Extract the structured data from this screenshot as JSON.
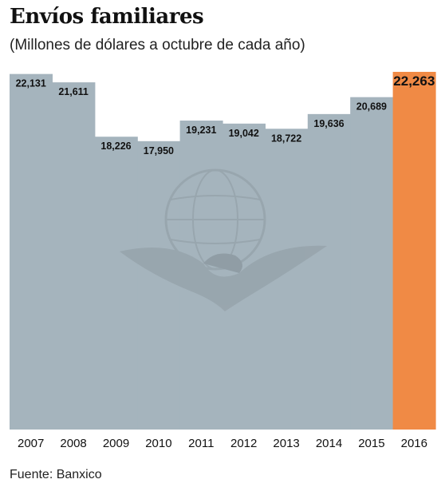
{
  "header": {
    "title": "Envíos familiares",
    "subtitle": "(Millones de dólares a octubre de cada año)"
  },
  "footer": {
    "source": "Fuente: Banxico"
  },
  "colors": {
    "bar": "#a5b4bd",
    "highlight": "#f08a45",
    "label_text": "#111111",
    "axis_text": "#111111",
    "emblem": "#8f9ba3"
  },
  "chart_data": {
    "type": "bar",
    "title": "Envíos familiares",
    "subtitle": "(Millones de dólares a octubre de cada año)",
    "xlabel": "",
    "ylabel": "",
    "categories": [
      "2007",
      "2008",
      "2009",
      "2010",
      "2011",
      "2012",
      "2013",
      "2014",
      "2015",
      "2016"
    ],
    "values": [
      22131,
      21611,
      18226,
      17950,
      19231,
      19042,
      18722,
      19636,
      20689,
      22263
    ],
    "value_labels": [
      "22,131",
      "21,611",
      "18,226",
      "17,950",
      "19,231",
      "19,042",
      "18,722",
      "19,636",
      "20,689",
      "22,263"
    ],
    "highlight_category": "2016",
    "ylim": [
      0,
      22263
    ],
    "grid": false,
    "legend": "none"
  }
}
